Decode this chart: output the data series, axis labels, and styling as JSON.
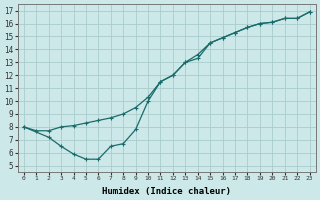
{
  "xlabel": "Humidex (Indice chaleur)",
  "bg_color": "#cce8e8",
  "grid_color": "#aacccc",
  "line_color": "#1a6b6b",
  "xlim": [
    -0.5,
    23.5
  ],
  "ylim": [
    4.5,
    17.5
  ],
  "xticks": [
    0,
    1,
    2,
    3,
    4,
    5,
    6,
    7,
    8,
    9,
    10,
    11,
    12,
    13,
    14,
    15,
    16,
    17,
    18,
    19,
    20,
    21,
    22,
    23
  ],
  "yticks": [
    5,
    6,
    7,
    8,
    9,
    10,
    11,
    12,
    13,
    14,
    15,
    16,
    17
  ],
  "line1_x": [
    0,
    1,
    2,
    3,
    4,
    5,
    6,
    7,
    8,
    9,
    10,
    11,
    12,
    13,
    14,
    15,
    16,
    17,
    18,
    19,
    20,
    21,
    22,
    23
  ],
  "line1_y": [
    8.0,
    7.7,
    7.7,
    8.0,
    8.1,
    8.3,
    8.5,
    8.7,
    9.0,
    9.5,
    10.3,
    11.5,
    12.0,
    13.0,
    13.3,
    14.5,
    14.9,
    15.3,
    15.7,
    16.0,
    16.1,
    16.4,
    16.4,
    16.9
  ],
  "line2_x": [
    0,
    2,
    3,
    4,
    5,
    6,
    7,
    8,
    9,
    10,
    11,
    12,
    13,
    14,
    15,
    16,
    17,
    18,
    19,
    20,
    21,
    22,
    23
  ],
  "line2_y": [
    8.0,
    7.2,
    6.5,
    5.9,
    5.5,
    5.5,
    6.5,
    6.7,
    7.8,
    10.0,
    11.5,
    12.0,
    13.0,
    13.6,
    14.5,
    14.9,
    15.3,
    15.7,
    16.0,
    16.1,
    16.4,
    16.4,
    16.9
  ],
  "marker": "+",
  "markersize": 3.5,
  "linewidth": 0.9
}
